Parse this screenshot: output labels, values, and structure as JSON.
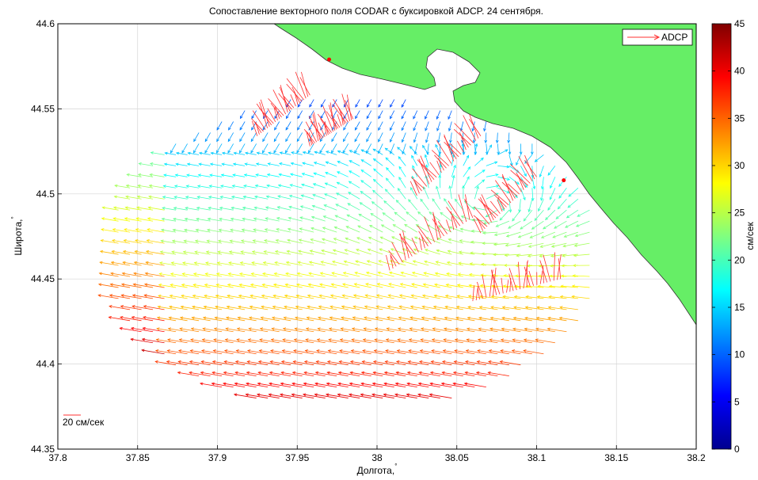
{
  "chart_data": {
    "type": "vector_field",
    "title": "Сопоставление векторного поля CODAR с буксировкой ADCP. 24 сентября.",
    "xlabel": "Долгота,",
    "xlabel_degree": "°",
    "ylabel": "Широта,",
    "ylabel_degree": "°",
    "xlim": [
      37.8,
      38.2
    ],
    "ylim": [
      44.35,
      44.6
    ],
    "x_ticks": [
      37.8,
      37.85,
      37.9,
      37.95,
      38,
      38.05,
      38.1,
      38.15,
      38.2
    ],
    "x_tick_labels": [
      "37.8",
      "37.85",
      "37.9",
      "37.95",
      "38",
      "38.05",
      "38.1",
      "38.15",
      "38.2"
    ],
    "y_ticks": [
      44.35,
      44.4,
      44.45,
      44.5,
      44.55,
      44.6
    ],
    "y_tick_labels": [
      "44.35",
      "44.4",
      "44.45",
      "44.5",
      "44.55",
      "44.6"
    ],
    "grid": true,
    "legend": {
      "label": "ADCP",
      "placement": "top-right",
      "color": "#ff3030"
    },
    "colorbar": {
      "label": "см/сек",
      "range": [
        0,
        45
      ],
      "ticks": [
        0,
        5,
        10,
        15,
        20,
        25,
        30,
        35,
        40,
        45
      ],
      "tick_labels": [
        "0",
        "5",
        "10",
        "15",
        "20",
        "25",
        "30",
        "35",
        "40",
        "45"
      ],
      "colormap": "jet"
    },
    "scale_reference": {
      "label": "20 см/сек",
      "speed": 20
    },
    "land_color": "#66ee66",
    "markers": [
      {
        "lon": 37.97,
        "lat": 44.579,
        "color": "#ff0000"
      },
      {
        "lon": 38.117,
        "lat": 44.508,
        "color": "#ff0000"
      }
    ],
    "adcp_tracks": [
      [
        [
          37.958,
          44.558
        ],
        [
          37.925,
          44.534
        ]
      ],
      [
        [
          37.985,
          44.544
        ],
        [
          37.958,
          44.528
        ]
      ],
      [
        [
          38.065,
          44.534
        ],
        [
          38.025,
          44.499
        ]
      ],
      [
        [
          38.1,
          44.51
        ],
        [
          38.065,
          44.477
        ]
      ],
      [
        [
          38.06,
          44.486
        ],
        [
          38.008,
          44.455
        ]
      ],
      [
        [
          38.115,
          44.45
        ],
        [
          38.06,
          44.437
        ]
      ]
    ]
  }
}
